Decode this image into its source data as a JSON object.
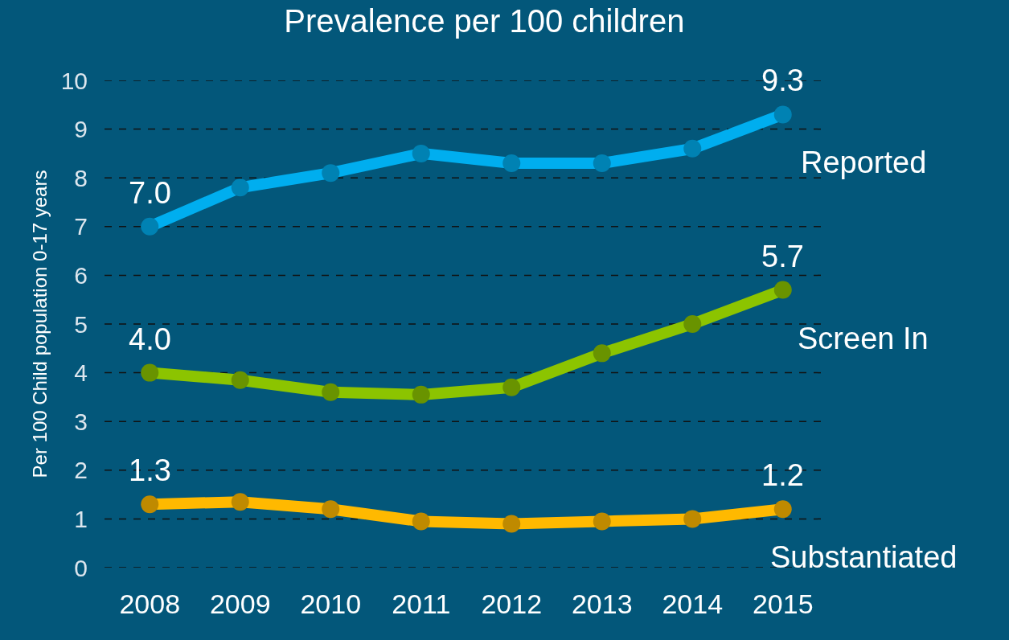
{
  "chart_data": {
    "type": "line",
    "title": "Prevalence per 100 children",
    "ylabel": "Per 100 Child population 0-17 years",
    "categories": [
      "2008",
      "2009",
      "2010",
      "2011",
      "2012",
      "2013",
      "2014",
      "2015"
    ],
    "series": [
      {
        "name": "Reported",
        "color": "#00aeef",
        "values": [
          7.0,
          7.8,
          8.1,
          8.5,
          8.3,
          8.3,
          8.6,
          9.3
        ],
        "value_labels": [
          "7.0",
          null,
          null,
          null,
          null,
          null,
          null,
          "9.3"
        ]
      },
      {
        "name": "Screen In",
        "color": "#8cc400",
        "values": [
          4.0,
          3.85,
          3.6,
          3.55,
          3.7,
          4.4,
          5.0,
          5.7
        ],
        "value_labels": [
          "4.0",
          null,
          null,
          null,
          null,
          null,
          null,
          "5.7"
        ]
      },
      {
        "name": "Substantiated",
        "color": "#ffb900",
        "values": [
          1.3,
          1.35,
          1.2,
          0.95,
          0.9,
          0.95,
          1.0,
          1.2
        ],
        "value_labels": [
          "1.3",
          null,
          null,
          null,
          null,
          null,
          null,
          "1.2"
        ]
      }
    ],
    "ylim": [
      0,
      10
    ],
    "yticks": [
      0,
      1,
      2,
      3,
      4,
      5,
      6,
      7,
      8,
      9,
      10
    ],
    "grid": "y",
    "legend": false,
    "marker": "circle",
    "line_style": "solid"
  }
}
